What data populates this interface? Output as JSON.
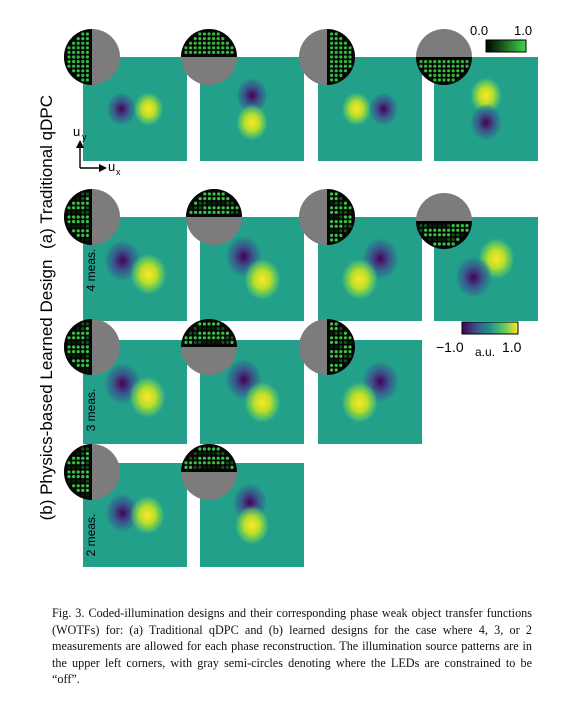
{
  "figure": {
    "section_a_label": "(a) Traditional qDPC",
    "section_b_label": "(b) Physics-based Learned Design",
    "row_labels": [
      "4 meas.",
      "3 meas.",
      "2 meas."
    ],
    "axis_uy": "u",
    "axis_uy_sub": "y",
    "axis_ux": "u",
    "axis_ux_sub": "x",
    "colorbar_top": {
      "min": "0.0",
      "max": "1.0",
      "colors": [
        "#000000",
        "#3cd94a"
      ]
    },
    "colorbar_bottom": {
      "min": "−1.0",
      "max": "1.0",
      "unit": "a.u.",
      "colors": [
        "#440154",
        "#3b528b",
        "#21918c",
        "#5ec962",
        "#fde725"
      ]
    },
    "background_color": "#23a08a",
    "gray_mask_color": "#7c7c7c"
  },
  "caption": {
    "text": "Fig. 3.  Coded-illumination designs and their corresponding phase weak object transfer functions (WOTFs) for: (a) Traditional qDPC and (b) learned designs for the case where 4, 3, or 2 measurements are allowed for each phase reconstruction. The illumination source patterns are in the upper left corners, with gray semi-circles denoting where the LEDs are constrained to be “off”."
  }
}
